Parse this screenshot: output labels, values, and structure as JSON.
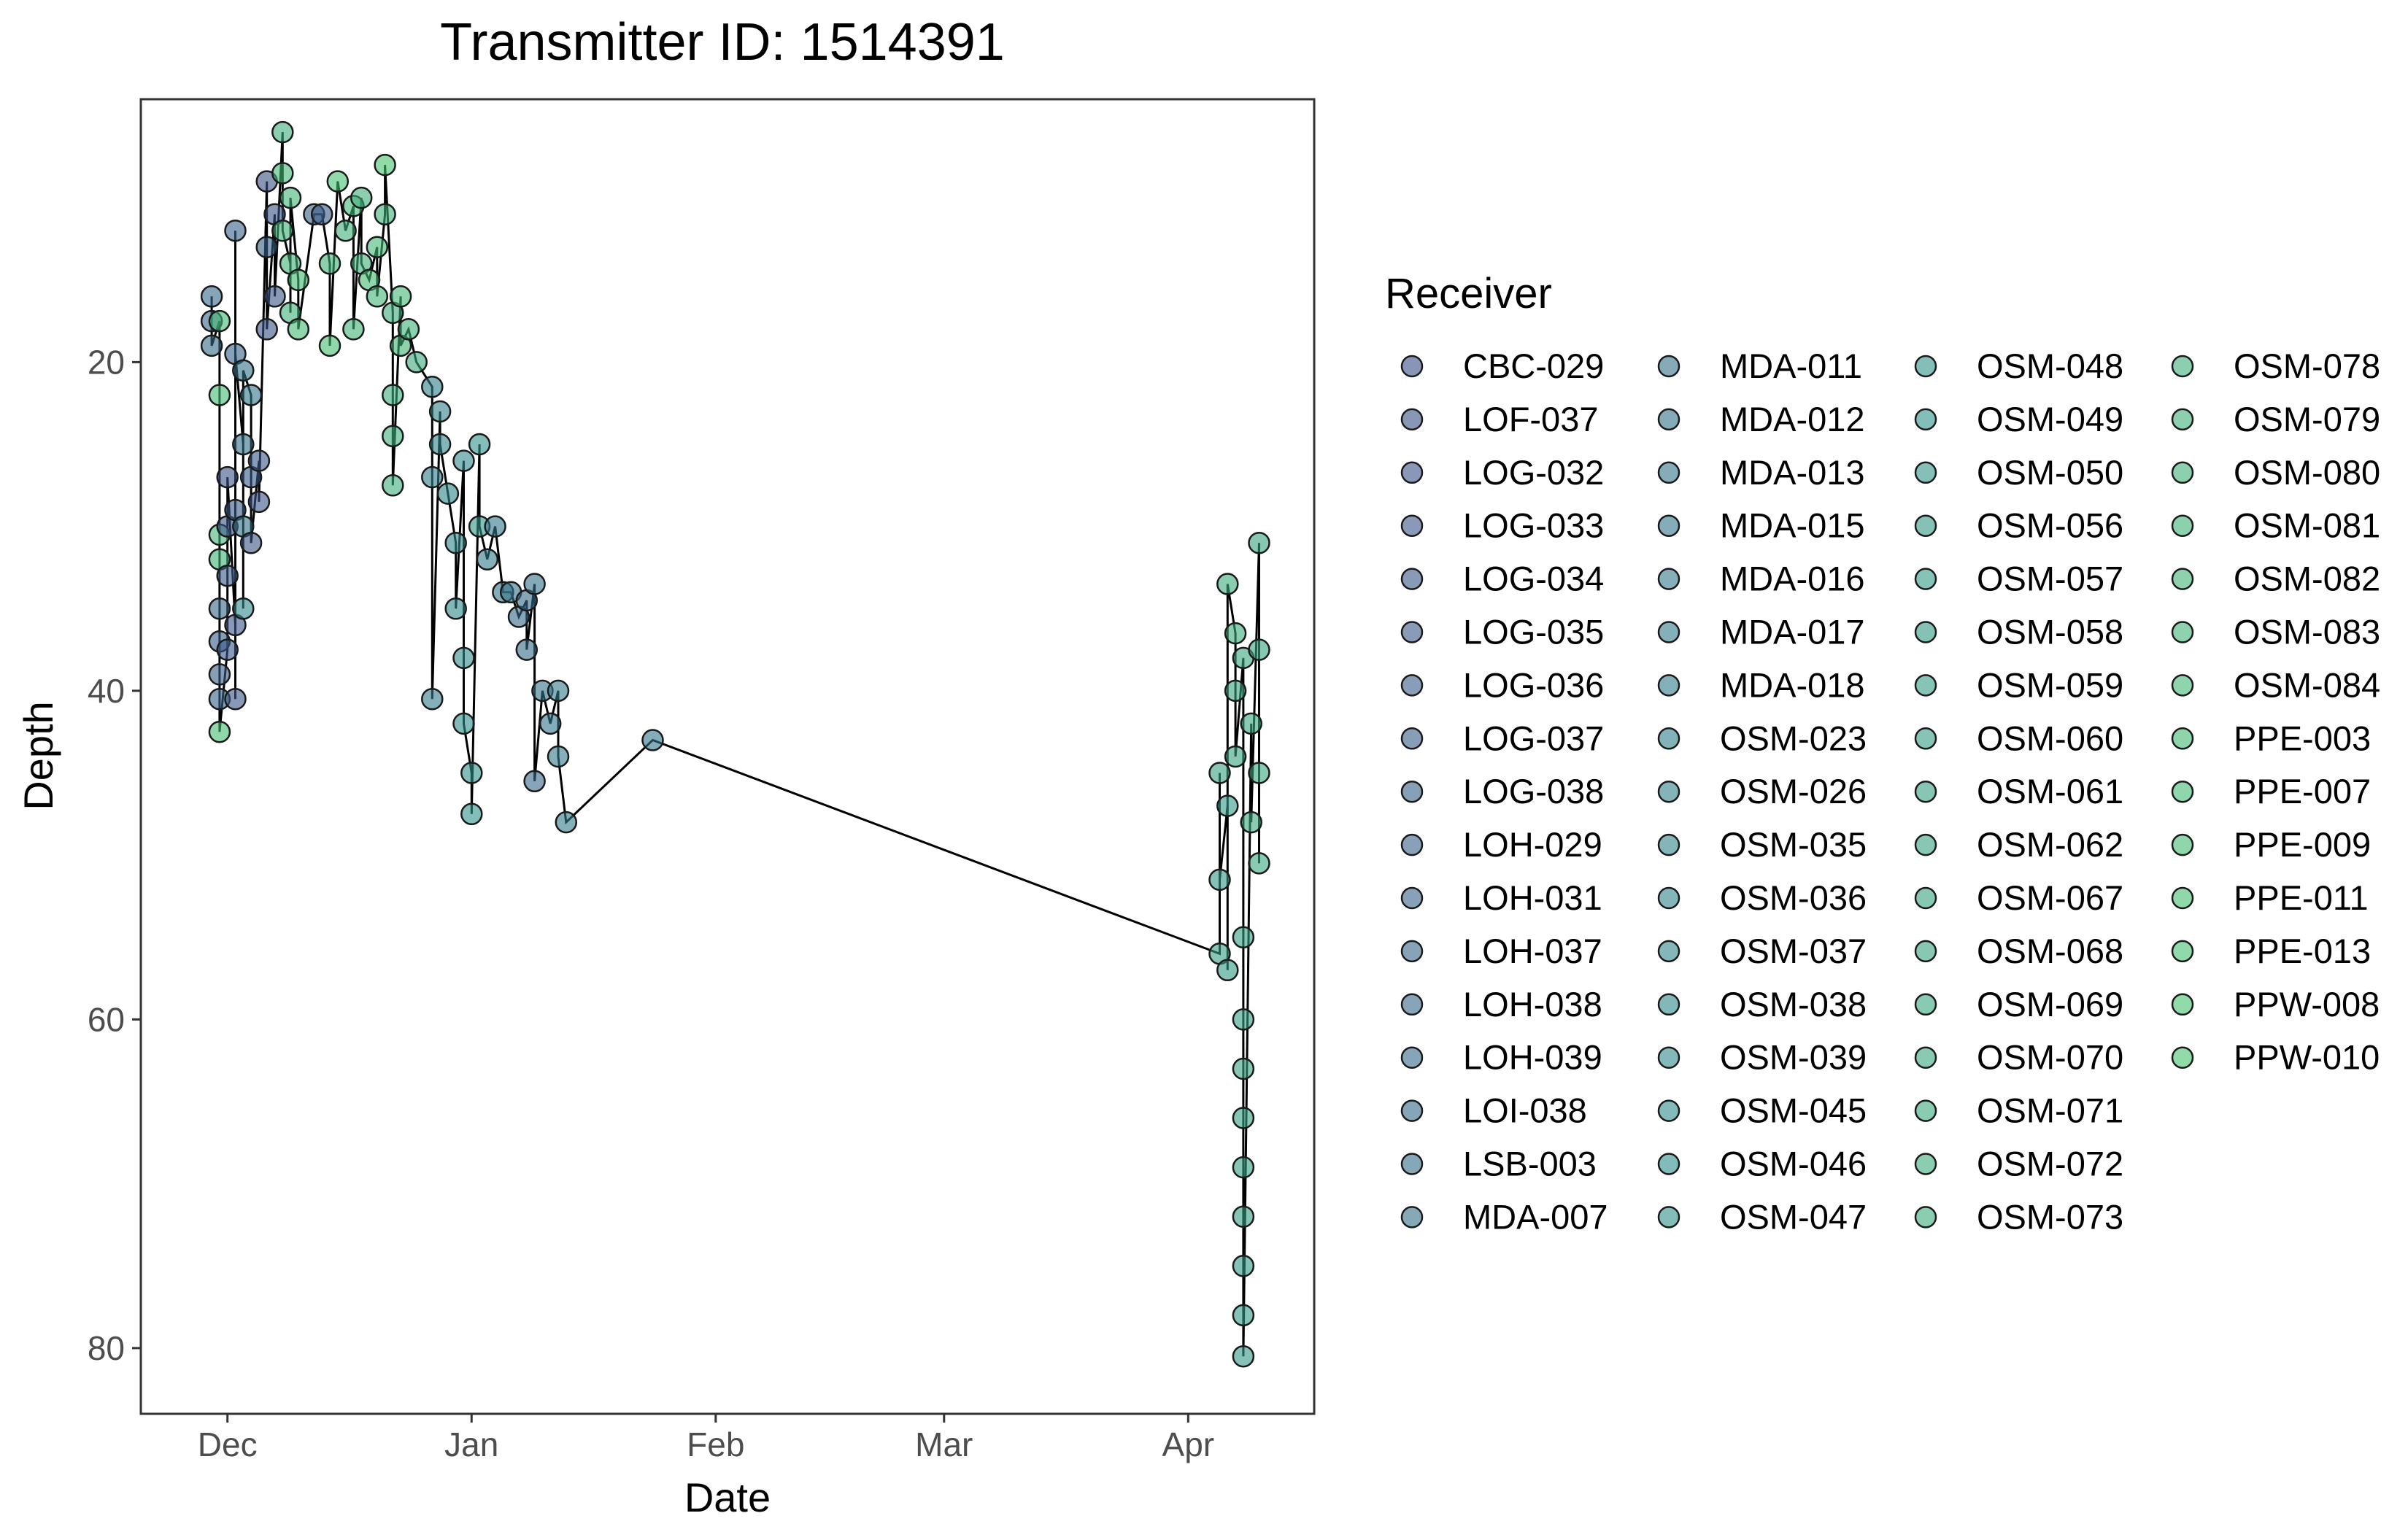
{
  "chart_data": {
    "type": "scatter",
    "title": "Transmitter ID: 1514391",
    "xlabel": "Date",
    "ylabel": "Depth",
    "y_reversed": true,
    "xlim": [
      "2019-11-20",
      "2020-04-17"
    ],
    "ylim": [
      4,
      84
    ],
    "x_ticks": [
      {
        "date": "2019-12-01",
        "label": "Dec"
      },
      {
        "date": "2020-01-01",
        "label": "Jan"
      },
      {
        "date": "2020-02-01",
        "label": "Feb"
      },
      {
        "date": "2020-03-01",
        "label": "Mar"
      },
      {
        "date": "2020-04-01",
        "label": "Apr"
      }
    ],
    "y_ticks": [
      20,
      40,
      60,
      80
    ],
    "grid": false,
    "legend": {
      "title": "Receiver",
      "placement": "right",
      "columns": 4,
      "items": [
        "CBC-029",
        "LOF-037",
        "LOG-032",
        "LOG-033",
        "LOG-034",
        "LOG-035",
        "LOG-036",
        "LOG-037",
        "LOG-038",
        "LOH-029",
        "LOH-031",
        "LOH-037",
        "LOH-038",
        "LOH-039",
        "LOI-038",
        "LSB-003",
        "MDA-007",
        "MDA-011",
        "MDA-012",
        "MDA-013",
        "MDA-015",
        "MDA-016",
        "MDA-017",
        "MDA-018",
        "OSM-023",
        "OSM-026",
        "OSM-035",
        "OSM-036",
        "OSM-037",
        "OSM-038",
        "OSM-039",
        "OSM-045",
        "OSM-046",
        "OSM-047",
        "OSM-048",
        "OSM-049",
        "OSM-050",
        "OSM-056",
        "OSM-057",
        "OSM-058",
        "OSM-059",
        "OSM-060",
        "OSM-061",
        "OSM-062",
        "OSM-067",
        "OSM-068",
        "OSM-069",
        "OSM-070",
        "OSM-071",
        "OSM-072",
        "OSM-073",
        "OSM-078",
        "OSM-079",
        "OSM-080",
        "OSM-081",
        "OSM-082",
        "OSM-083",
        "OSM-084",
        "PPE-003",
        "PPE-007",
        "PPE-009",
        "PPE-011",
        "PPE-013",
        "PPW-008",
        "PPW-010"
      ]
    },
    "colors": {
      "palette_start": "#3b4f86",
      "palette_mid": "#2f8f8c",
      "palette_end": "#48c36f",
      "line": "#000000",
      "marker_stroke": "#1a1a1a",
      "axis_text": "#4d4d4d"
    },
    "series": [
      {
        "date": "2019-11-29",
        "depth": 16.0,
        "receiver": "LOH-039"
      },
      {
        "date": "2019-11-29",
        "depth": 17.5,
        "receiver": "LOH-038"
      },
      {
        "date": "2019-11-29",
        "depth": 19.0,
        "receiver": "LOI-038"
      },
      {
        "date": "2019-11-30",
        "depth": 17.5,
        "receiver": "PPE-003"
      },
      {
        "date": "2019-11-30",
        "depth": 22.0,
        "receiver": "PPE-009"
      },
      {
        "date": "2019-11-30",
        "depth": 30.5,
        "receiver": "OSM-083"
      },
      {
        "date": "2019-11-30",
        "depth": 32.0,
        "receiver": "OSM-081"
      },
      {
        "date": "2019-11-30",
        "depth": 35.0,
        "receiver": "LOH-037"
      },
      {
        "date": "2019-11-30",
        "depth": 37.0,
        "receiver": "LOG-036"
      },
      {
        "date": "2019-11-30",
        "depth": 39.0,
        "receiver": "LOG-037"
      },
      {
        "date": "2019-11-30",
        "depth": 40.5,
        "receiver": "LOH-031"
      },
      {
        "date": "2019-11-30",
        "depth": 42.5,
        "receiver": "PPE-011"
      },
      {
        "date": "2019-12-01",
        "depth": 37.5,
        "receiver": "LOG-034"
      },
      {
        "date": "2019-12-01",
        "depth": 33.0,
        "receiver": "LOG-035"
      },
      {
        "date": "2019-12-01",
        "depth": 30.0,
        "receiver": "LOG-033"
      },
      {
        "date": "2019-12-01",
        "depth": 27.0,
        "receiver": "LOG-032"
      },
      {
        "date": "2019-12-02",
        "depth": 36.0,
        "receiver": "LOG-033"
      },
      {
        "date": "2019-12-02",
        "depth": 40.5,
        "receiver": "LOG-034"
      },
      {
        "date": "2019-12-02",
        "depth": 29.0,
        "receiver": "LOG-035"
      },
      {
        "date": "2019-12-02",
        "depth": 12.0,
        "receiver": "LOH-029"
      },
      {
        "date": "2019-12-02",
        "depth": 19.5,
        "receiver": "LOH-031"
      },
      {
        "date": "2019-12-03",
        "depth": 25.0,
        "receiver": "MDA-007"
      },
      {
        "date": "2019-12-03",
        "depth": 30.0,
        "receiver": "MDA-011"
      },
      {
        "date": "2019-12-03",
        "depth": 35.0,
        "receiver": "OSM-039"
      },
      {
        "date": "2019-12-03",
        "depth": 20.5,
        "receiver": "MDA-012"
      },
      {
        "date": "2019-12-04",
        "depth": 22.0,
        "receiver": "MDA-013"
      },
      {
        "date": "2019-12-04",
        "depth": 27.0,
        "receiver": "LOG-036"
      },
      {
        "date": "2019-12-04",
        "depth": 31.0,
        "receiver": "LOG-034"
      },
      {
        "date": "2019-12-05",
        "depth": 26.0,
        "receiver": "LOG-035"
      },
      {
        "date": "2019-12-05",
        "depth": 28.5,
        "receiver": "LOG-033"
      },
      {
        "date": "2019-12-06",
        "depth": 9.0,
        "receiver": "LOF-037"
      },
      {
        "date": "2019-12-06",
        "depth": 13.0,
        "receiver": "LOG-038"
      },
      {
        "date": "2019-12-06",
        "depth": 18.0,
        "receiver": "LOG-032"
      },
      {
        "date": "2019-12-07",
        "depth": 11.0,
        "receiver": "LOG-032"
      },
      {
        "date": "2019-12-07",
        "depth": 16.0,
        "receiver": "LOG-034"
      },
      {
        "date": "2019-12-08",
        "depth": 6.0,
        "receiver": "OSM-078"
      },
      {
        "date": "2019-12-08",
        "depth": 8.5,
        "receiver": "OSM-084"
      },
      {
        "date": "2019-12-08",
        "depth": 12.0,
        "receiver": "OSM-080"
      },
      {
        "date": "2019-12-09",
        "depth": 14.0,
        "receiver": "OSM-082"
      },
      {
        "date": "2019-12-09",
        "depth": 17.0,
        "receiver": "OSM-079"
      },
      {
        "date": "2019-12-09",
        "depth": 10.0,
        "receiver": "OSM-083"
      },
      {
        "date": "2019-12-10",
        "depth": 15.0,
        "receiver": "PPE-003"
      },
      {
        "date": "2019-12-10",
        "depth": 18.0,
        "receiver": "PPE-007"
      },
      {
        "date": "2019-12-12",
        "depth": 11.0,
        "receiver": "LOG-038"
      },
      {
        "date": "2019-12-13",
        "depth": 11.0,
        "receiver": "LOG-036"
      },
      {
        "date": "2019-12-14",
        "depth": 14.0,
        "receiver": "OSM-081"
      },
      {
        "date": "2019-12-14",
        "depth": 19.0,
        "receiver": "PPE-011"
      },
      {
        "date": "2019-12-15",
        "depth": 9.0,
        "receiver": "PPE-013"
      },
      {
        "date": "2019-12-16",
        "depth": 12.0,
        "receiver": "OSM-079"
      },
      {
        "date": "2019-12-17",
        "depth": 10.5,
        "receiver": "OSM-084"
      },
      {
        "date": "2019-12-17",
        "depth": 18.0,
        "receiver": "OSM-082"
      },
      {
        "date": "2019-12-18",
        "depth": 10.0,
        "receiver": "OSM-078"
      },
      {
        "date": "2019-12-18",
        "depth": 14.0,
        "receiver": "OSM-080"
      },
      {
        "date": "2019-12-19",
        "depth": 15.0,
        "receiver": "PPE-009"
      },
      {
        "date": "2019-12-20",
        "depth": 13.0,
        "receiver": "PPE-007"
      },
      {
        "date": "2019-12-20",
        "depth": 16.0,
        "receiver": "OSM-083"
      },
      {
        "date": "2019-12-21",
        "depth": 11.0,
        "receiver": "OSM-081"
      },
      {
        "date": "2019-12-21",
        "depth": 8.0,
        "receiver": "PPW-010"
      },
      {
        "date": "2019-12-22",
        "depth": 17.0,
        "receiver": "OSM-073"
      },
      {
        "date": "2019-12-22",
        "depth": 22.0,
        "receiver": "OSM-072"
      },
      {
        "date": "2019-12-22",
        "depth": 24.5,
        "receiver": "OSM-079"
      },
      {
        "date": "2019-12-22",
        "depth": 27.5,
        "receiver": "OSM-078"
      },
      {
        "date": "2019-12-23",
        "depth": 16.0,
        "receiver": "OSM-084"
      },
      {
        "date": "2019-12-23",
        "depth": 19.0,
        "receiver": "OSM-082"
      },
      {
        "date": "2019-12-24",
        "depth": 18.0,
        "receiver": "OSM-080"
      },
      {
        "date": "2019-12-25",
        "depth": 20.0,
        "receiver": "OSM-071"
      },
      {
        "date": "2019-12-27",
        "depth": 21.5,
        "receiver": "OSM-023"
      },
      {
        "date": "2019-12-27",
        "depth": 27.0,
        "receiver": "MDA-018"
      },
      {
        "date": "2019-12-27",
        "depth": 40.5,
        "receiver": "MDA-016"
      },
      {
        "date": "2019-12-28",
        "depth": 23.0,
        "receiver": "OSM-026"
      },
      {
        "date": "2019-12-28",
        "depth": 25.0,
        "receiver": "OSM-035"
      },
      {
        "date": "2019-12-29",
        "depth": 28.0,
        "receiver": "OSM-036"
      },
      {
        "date": "2019-12-30",
        "depth": 31.0,
        "receiver": "OSM-037"
      },
      {
        "date": "2019-12-30",
        "depth": 35.0,
        "receiver": "OSM-038"
      },
      {
        "date": "2019-12-31",
        "depth": 26.0,
        "receiver": "OSM-039"
      },
      {
        "date": "2019-12-31",
        "depth": 38.0,
        "receiver": "OSM-045"
      },
      {
        "date": "2019-12-31",
        "depth": 42.0,
        "receiver": "OSM-046"
      },
      {
        "date": "2020-01-01",
        "depth": 45.0,
        "receiver": "OSM-047"
      },
      {
        "date": "2020-01-01",
        "depth": 47.5,
        "receiver": "OSM-048"
      },
      {
        "date": "2020-01-02",
        "depth": 25.0,
        "receiver": "OSM-049"
      },
      {
        "date": "2020-01-02",
        "depth": 30.0,
        "receiver": "OSM-050"
      },
      {
        "date": "2020-01-03",
        "depth": 32.0,
        "receiver": "MDA-017"
      },
      {
        "date": "2020-01-04",
        "depth": 30.0,
        "receiver": "MDA-015"
      },
      {
        "date": "2020-01-05",
        "depth": 34.0,
        "receiver": "MDA-013"
      },
      {
        "date": "2020-01-06",
        "depth": 34.0,
        "receiver": "MDA-011"
      },
      {
        "date": "2020-01-07",
        "depth": 35.5,
        "receiver": "LOH-039"
      },
      {
        "date": "2020-01-08",
        "depth": 34.5,
        "receiver": "LOI-038"
      },
      {
        "date": "2020-01-08",
        "depth": 37.5,
        "receiver": "LSB-003"
      },
      {
        "date": "2020-01-09",
        "depth": 33.5,
        "receiver": "MDA-007"
      },
      {
        "date": "2020-01-09",
        "depth": 45.5,
        "receiver": "LOH-038"
      },
      {
        "date": "2020-01-10",
        "depth": 40.0,
        "receiver": "MDA-012"
      },
      {
        "date": "2020-01-11",
        "depth": 42.0,
        "receiver": "MDA-013"
      },
      {
        "date": "2020-01-12",
        "depth": 40.0,
        "receiver": "MDA-016"
      },
      {
        "date": "2020-01-12",
        "depth": 44.0,
        "receiver": "MDA-017"
      },
      {
        "date": "2020-01-13",
        "depth": 48.0,
        "receiver": "MDA-018"
      },
      {
        "date": "2020-01-24",
        "depth": 43.0,
        "receiver": "MDA-015"
      },
      {
        "date": "2020-04-05",
        "depth": 56.0,
        "receiver": "OSM-061"
      },
      {
        "date": "2020-04-05",
        "depth": 45.0,
        "receiver": "OSM-062"
      },
      {
        "date": "2020-04-05",
        "depth": 51.5,
        "receiver": "OSM-056"
      },
      {
        "date": "2020-04-06",
        "depth": 47.0,
        "receiver": "OSM-057"
      },
      {
        "date": "2020-04-06",
        "depth": 57.0,
        "receiver": "OSM-058"
      },
      {
        "date": "2020-04-06",
        "depth": 33.5,
        "receiver": "OSM-072"
      },
      {
        "date": "2020-04-07",
        "depth": 36.5,
        "receiver": "OSM-073"
      },
      {
        "date": "2020-04-07",
        "depth": 40.0,
        "receiver": "OSM-067"
      },
      {
        "date": "2020-04-07",
        "depth": 44.0,
        "receiver": "OSM-068"
      },
      {
        "date": "2020-04-08",
        "depth": 38.0,
        "receiver": "OSM-069"
      },
      {
        "date": "2020-04-08",
        "depth": 55.0,
        "receiver": "OSM-059"
      },
      {
        "date": "2020-04-08",
        "depth": 60.0,
        "receiver": "OSM-060"
      },
      {
        "date": "2020-04-08",
        "depth": 63.0,
        "receiver": "OSM-062"
      },
      {
        "date": "2020-04-08",
        "depth": 66.0,
        "receiver": "OSM-061"
      },
      {
        "date": "2020-04-08",
        "depth": 69.0,
        "receiver": "OSM-060"
      },
      {
        "date": "2020-04-08",
        "depth": 72.0,
        "receiver": "OSM-059"
      },
      {
        "date": "2020-04-08",
        "depth": 75.0,
        "receiver": "OSM-058"
      },
      {
        "date": "2020-04-08",
        "depth": 78.0,
        "receiver": "OSM-057"
      },
      {
        "date": "2020-04-08",
        "depth": 80.5,
        "receiver": "OSM-056"
      },
      {
        "date": "2020-04-09",
        "depth": 42.0,
        "receiver": "OSM-070"
      },
      {
        "date": "2020-04-09",
        "depth": 48.0,
        "receiver": "OSM-071"
      },
      {
        "date": "2020-04-10",
        "depth": 31.0,
        "receiver": "OSM-068"
      },
      {
        "date": "2020-04-10",
        "depth": 37.5,
        "receiver": "OSM-067"
      },
      {
        "date": "2020-04-10",
        "depth": 45.0,
        "receiver": "OSM-069"
      },
      {
        "date": "2020-04-10",
        "depth": 50.5,
        "receiver": "OSM-070"
      }
    ]
  }
}
